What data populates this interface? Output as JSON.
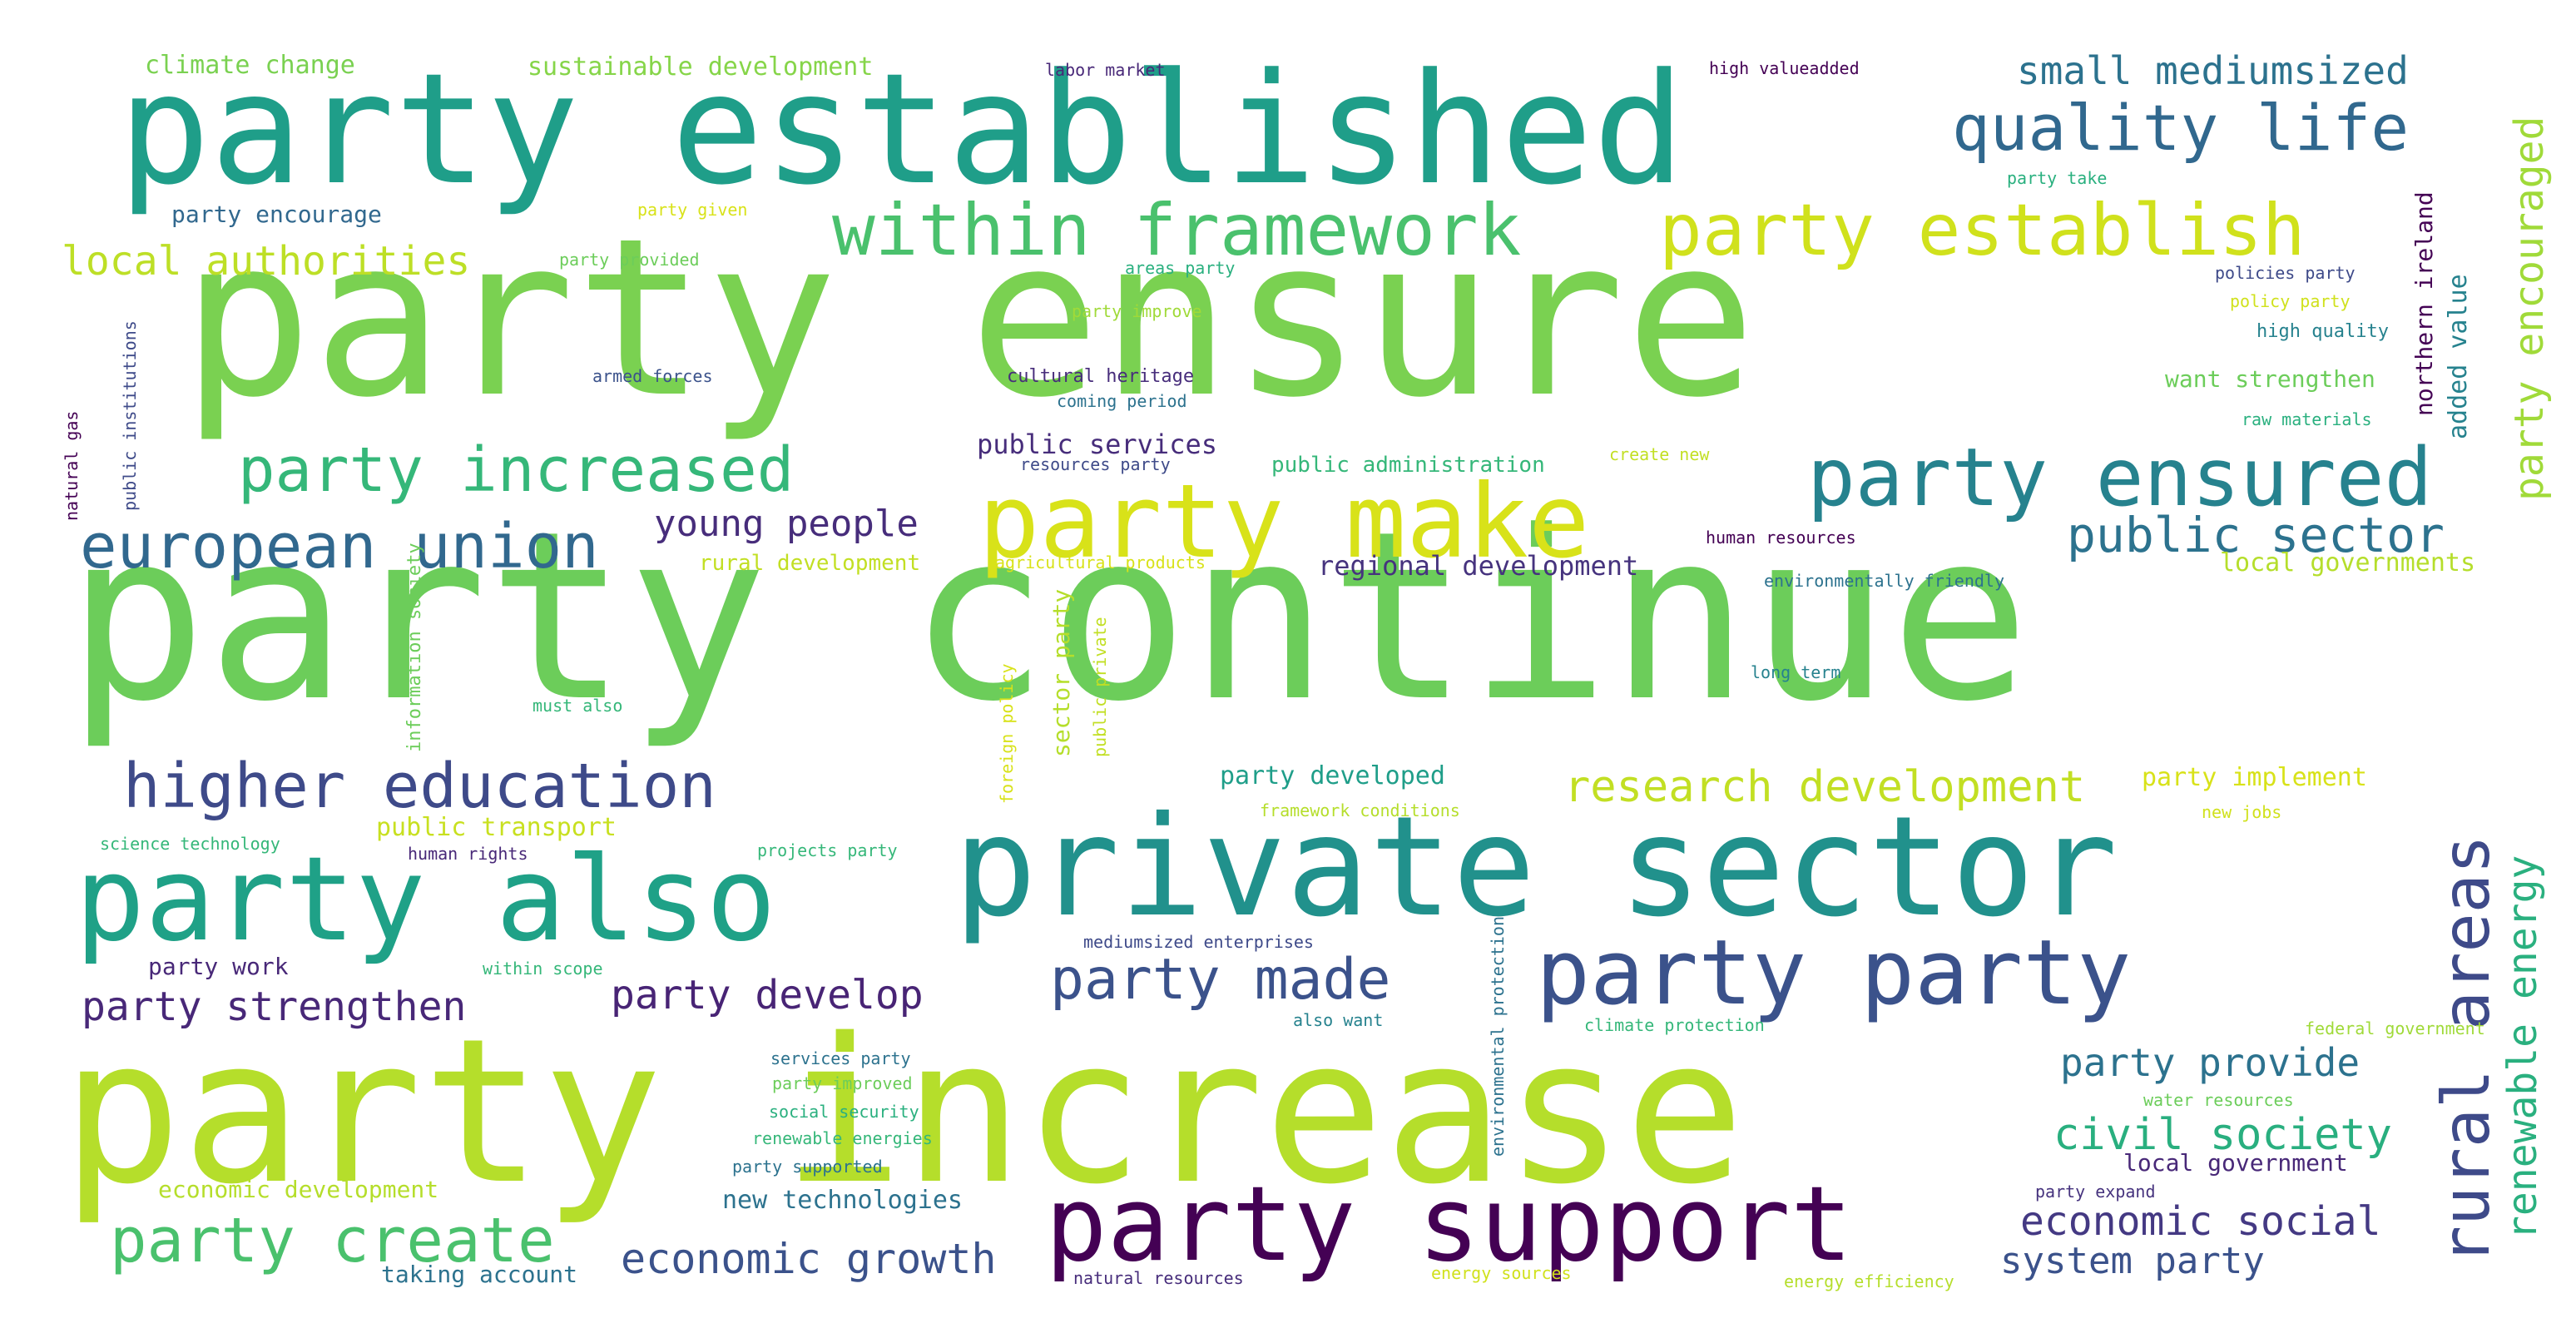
{
  "words": [
    {
      "id": "w1",
      "text": "party continue",
      "color": "#6ccd5a"
    },
    {
      "id": "w2",
      "text": "party ensure",
      "color": "#7ad151"
    },
    {
      "id": "w3",
      "text": "party increase",
      "color": "#b5de2b"
    },
    {
      "id": "w4",
      "text": "party established",
      "color": "#1f9e89"
    },
    {
      "id": "w5",
      "text": "private sector",
      "color": "#21918c"
    },
    {
      "id": "w6",
      "text": "party support",
      "color": "#440154"
    },
    {
      "id": "w7",
      "text": "party also",
      "color": "#1fa187"
    },
    {
      "id": "w8",
      "text": "party make",
      "color": "#d8e219"
    },
    {
      "id": "w9",
      "text": "party party",
      "color": "#3b528b"
    },
    {
      "id": "w10",
      "text": "party ensured",
      "color": "#26828e"
    },
    {
      "id": "w11",
      "text": "quality life",
      "color": "#31688e"
    },
    {
      "id": "w12",
      "text": "within framework",
      "color": "#4ac16d"
    },
    {
      "id": "w13",
      "text": "party establish",
      "color": "#d0e11c"
    },
    {
      "id": "w14",
      "text": "party increased",
      "color": "#35b779"
    },
    {
      "id": "w15",
      "text": "european union",
      "color": "#31688e"
    },
    {
      "id": "w16",
      "text": "higher education",
      "color": "#3e4a89"
    },
    {
      "id": "w17",
      "text": "party create",
      "color": "#4ac16d"
    },
    {
      "id": "w18",
      "text": "rural areas",
      "color": "#3e4a89"
    },
    {
      "id": "w19",
      "text": "public sector",
      "color": "#2c728e"
    },
    {
      "id": "w20",
      "text": "party made",
      "color": "#3b528b"
    },
    {
      "id": "w21",
      "text": "civil society",
      "color": "#29af7f"
    },
    {
      "id": "w22",
      "text": "party encouraged",
      "color": "#a0da39"
    },
    {
      "id": "w23",
      "text": "renewable energy",
      "color": "#2ab07f"
    },
    {
      "id": "w24",
      "text": "research development",
      "color": "#c2df23"
    },
    {
      "id": "w25",
      "text": "economic growth",
      "color": "#3b528b"
    },
    {
      "id": "w26",
      "text": "economic social",
      "color": "#443983"
    },
    {
      "id": "w27",
      "text": "local authorities",
      "color": "#bddf26"
    },
    {
      "id": "w28",
      "text": "party strengthen",
      "color": "#482878"
    },
    {
      "id": "w29",
      "text": "party develop",
      "color": "#482475"
    },
    {
      "id": "w30",
      "text": "small mediumsized",
      "color": "#2c728e"
    },
    {
      "id": "w31",
      "text": "party provide",
      "color": "#2c728e"
    },
    {
      "id": "w32",
      "text": "young people",
      "color": "#472d7b"
    },
    {
      "id": "w33",
      "text": "system party",
      "color": "#3b528b"
    },
    {
      "id": "w34",
      "text": "public services",
      "color": "#472d7b"
    },
    {
      "id": "w35",
      "text": "regional development",
      "color": "#46337e"
    },
    {
      "id": "w36",
      "text": "new technologies",
      "color": "#2c728e"
    },
    {
      "id": "w37",
      "text": "local governments",
      "color": "#b5de2b"
    },
    {
      "id": "w38",
      "text": "economic development",
      "color": "#b5de2b"
    },
    {
      "id": "w39",
      "text": "party developed",
      "color": "#1f9e89"
    },
    {
      "id": "w40",
      "text": "party implement",
      "color": "#d8e219"
    },
    {
      "id": "w41",
      "text": "public transport",
      "color": "#c8e020"
    },
    {
      "id": "w42",
      "text": "climate change",
      "color": "#7ad151"
    },
    {
      "id": "w43",
      "text": "sustainable development",
      "color": "#86d549"
    },
    {
      "id": "w44",
      "text": "party encourage",
      "color": "#31688e"
    },
    {
      "id": "w45",
      "text": "want strengthen",
      "color": "#6ccd5a"
    },
    {
      "id": "w46",
      "text": "local government",
      "color": "#482878"
    },
    {
      "id": "w47",
      "text": "taking account",
      "color": "#2c728e"
    },
    {
      "id": "w48",
      "text": "party work",
      "color": "#482878"
    },
    {
      "id": "w49",
      "text": "rural development",
      "color": "#c2df23"
    },
    {
      "id": "w50",
      "text": "public administration",
      "color": "#35b779"
    },
    {
      "id": "w51",
      "text": "northern ireland",
      "color": "#440154"
    },
    {
      "id": "w52",
      "text": "added value",
      "color": "#26828e"
    },
    {
      "id": "w53",
      "text": "sector party",
      "color": "#b5de2b"
    },
    {
      "id": "w54",
      "text": "labor market",
      "color": "#482878"
    },
    {
      "id": "w55",
      "text": "high valueadded",
      "color": "#440154"
    },
    {
      "id": "w56",
      "text": "party take",
      "color": "#2ab07f"
    },
    {
      "id": "w57",
      "text": "party given",
      "color": "#d8e219"
    },
    {
      "id": "w58",
      "text": "party provided",
      "color": "#6ccd5a"
    },
    {
      "id": "w59",
      "text": "areas party",
      "color": "#2ab07f"
    },
    {
      "id": "w60",
      "text": "party improve",
      "color": "#a0da39"
    },
    {
      "id": "w61",
      "text": "policies party",
      "color": "#3e4a89"
    },
    {
      "id": "w62",
      "text": "policy party",
      "color": "#d0e11c"
    },
    {
      "id": "w63",
      "text": "high quality",
      "color": "#26828e"
    },
    {
      "id": "w64",
      "text": "armed forces",
      "color": "#3b528b"
    },
    {
      "id": "w65",
      "text": "cultural heritage",
      "color": "#472d7b"
    },
    {
      "id": "w66",
      "text": "coming period",
      "color": "#2c728e"
    },
    {
      "id": "w67",
      "text": "resources party",
      "color": "#3e4a89"
    },
    {
      "id": "w68",
      "text": "create new",
      "color": "#c2df23"
    },
    {
      "id": "w69",
      "text": "raw materials",
      "color": "#2ab07f"
    },
    {
      "id": "w70",
      "text": "human resources",
      "color": "#440154"
    },
    {
      "id": "w71",
      "text": "agricultural products",
      "color": "#d8e219"
    },
    {
      "id": "w72",
      "text": "environmentally friendly",
      "color": "#2c728e"
    },
    {
      "id": "w73",
      "text": "public institutions",
      "color": "#3e4a89"
    },
    {
      "id": "w74",
      "text": "natural gas",
      "color": "#440154"
    },
    {
      "id": "w75",
      "text": "information society",
      "color": "#6ccd5a"
    },
    {
      "id": "w76",
      "text": "must also",
      "color": "#35b779"
    },
    {
      "id": "w77",
      "text": "long term",
      "color": "#26828e"
    },
    {
      "id": "w78",
      "text": "foreign policy",
      "color": "#d8e219"
    },
    {
      "id": "w79",
      "text": "public private",
      "color": "#c2df23"
    },
    {
      "id": "w80",
      "text": "framework conditions",
      "color": "#b5de2b"
    },
    {
      "id": "w81",
      "text": "new jobs",
      "color": "#d0e11c"
    },
    {
      "id": "w82",
      "text": "science technology",
      "color": "#35b779"
    },
    {
      "id": "w83",
      "text": "human rights",
      "color": "#482878"
    },
    {
      "id": "w84",
      "text": "projects party",
      "color": "#35b779"
    },
    {
      "id": "w85",
      "text": "mediumsized enterprises",
      "color": "#3e4a89"
    },
    {
      "id": "w86",
      "text": "within scope",
      "color": "#35b779"
    },
    {
      "id": "w87",
      "text": "also want",
      "color": "#26828e"
    },
    {
      "id": "w88",
      "text": "climate protection",
      "color": "#35b779"
    },
    {
      "id": "w89",
      "text": "federal government",
      "color": "#a0da39"
    },
    {
      "id": "w90",
      "text": "environmental protection",
      "color": "#2c728e"
    },
    {
      "id": "w91",
      "text": "services party",
      "color": "#2c728e"
    },
    {
      "id": "w92",
      "text": "party improved",
      "color": "#6ccd5a"
    },
    {
      "id": "w93",
      "text": "social security",
      "color": "#2ab07f"
    },
    {
      "id": "w94",
      "text": "renewable energies",
      "color": "#35b779"
    },
    {
      "id": "w95",
      "text": "party supported",
      "color": "#2c728e"
    },
    {
      "id": "w96",
      "text": "water resources",
      "color": "#6ccd5a"
    },
    {
      "id": "w97",
      "text": "party expand",
      "color": "#46337e"
    },
    {
      "id": "w98",
      "text": "natural resources",
      "color": "#472d7b"
    },
    {
      "id": "w99",
      "text": "energy sources",
      "color": "#d0e11c"
    },
    {
      "id": "w100",
      "text": "energy efficiency",
      "color": "#b5de2b"
    }
  ]
}
